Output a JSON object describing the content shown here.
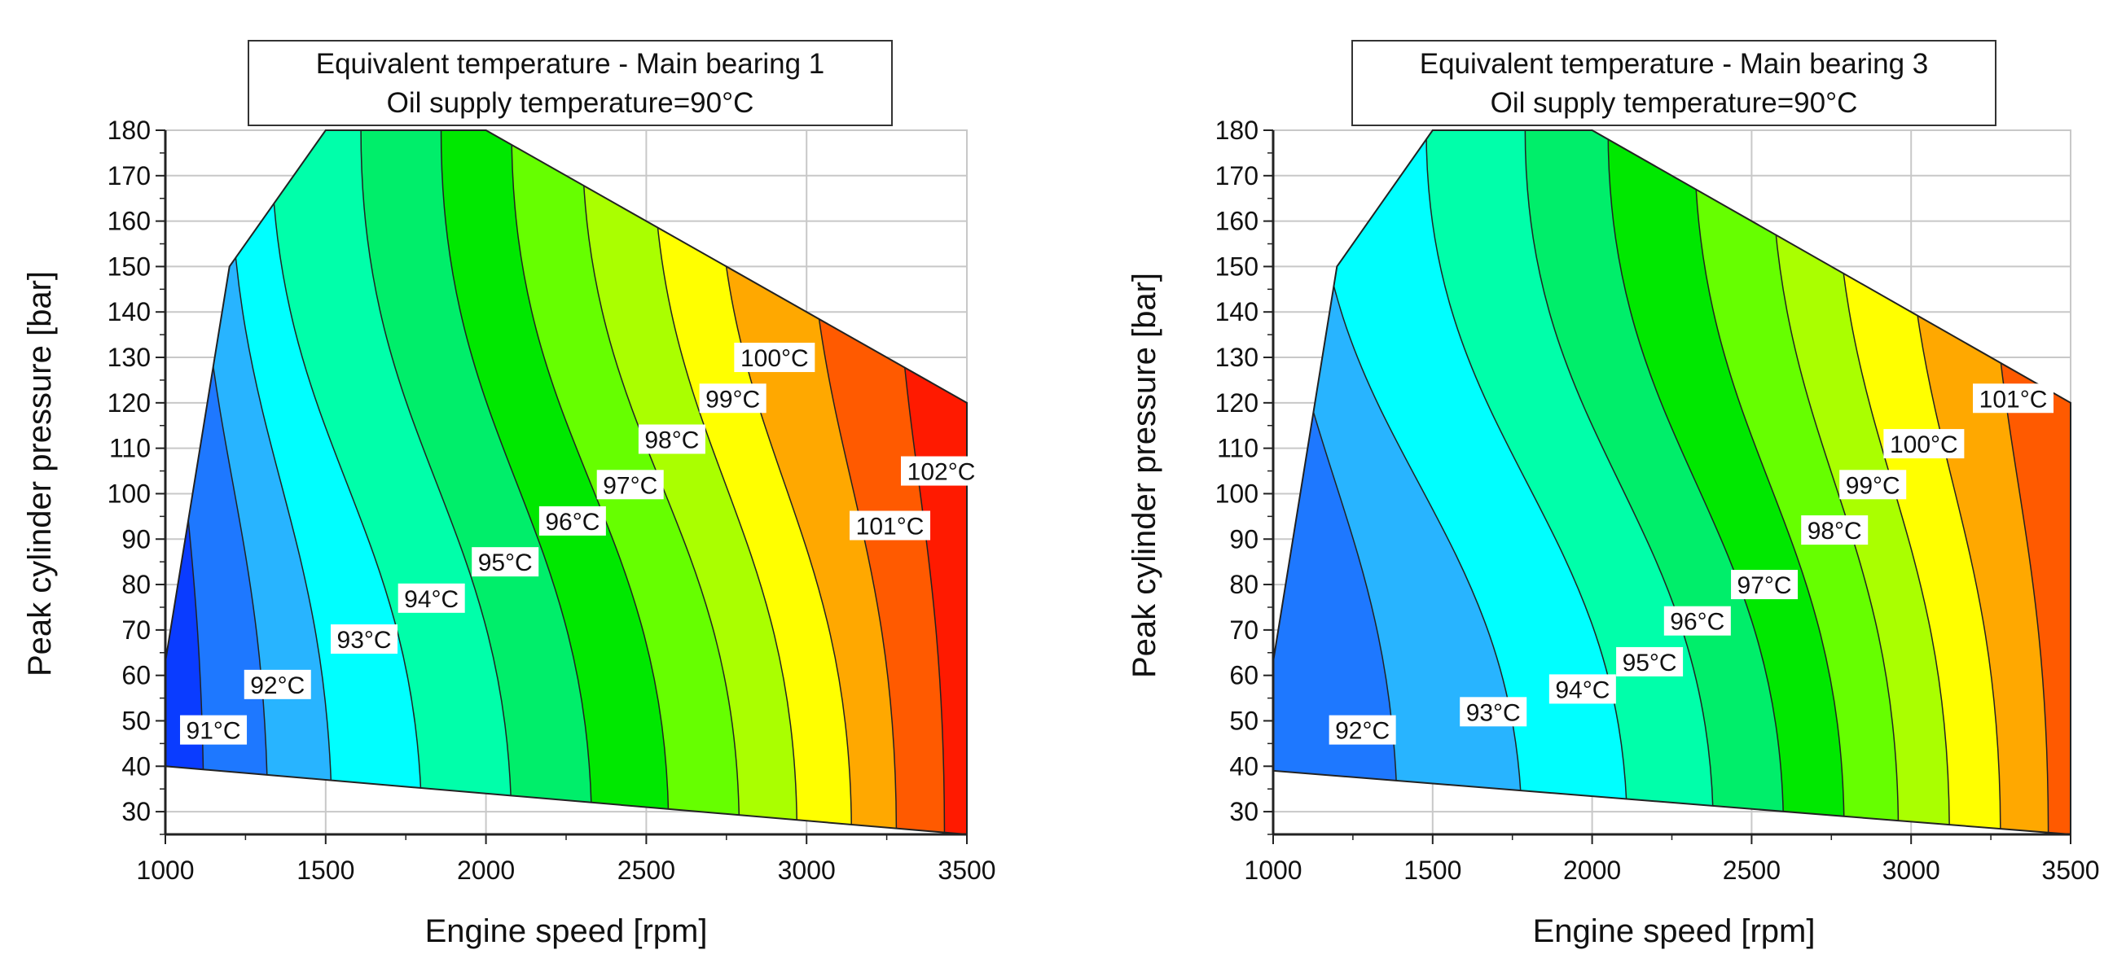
{
  "chart_data": [
    {
      "type": "contour",
      "title_line1": "Equivalent temperature - Main bearing 1",
      "title_line2": "Oil supply temperature=90°C",
      "xlabel": "Engine speed [rpm]",
      "ylabel": "Peak cylinder pressure [bar]",
      "xlim": [
        1000,
        3500
      ],
      "ylim": [
        25,
        180
      ],
      "xticks": [
        1000,
        1500,
        2000,
        2500,
        3000,
        3500
      ],
      "yticks": [
        30,
        40,
        50,
        60,
        70,
        80,
        90,
        100,
        110,
        120,
        130,
        140,
        150,
        160,
        170,
        180
      ],
      "domain": [
        [
          1000,
          40
        ],
        [
          1000,
          63
        ],
        [
          1200,
          150
        ],
        [
          1500,
          180
        ],
        [
          2000,
          180
        ],
        [
          3500,
          120
        ],
        [
          3500,
          25
        ]
      ],
      "iso_lines": [
        {
          "level": 91,
          "bottom": 1120,
          "top": 1000
        },
        {
          "level": 92,
          "bottom": 1320,
          "top": 1100
        },
        {
          "level": 93,
          "bottom": 1520,
          "top": 1200
        },
        {
          "level": 94,
          "bottom": 1800,
          "top": 1330
        },
        {
          "level": 95,
          "bottom": 2080,
          "top": 1610
        },
        {
          "level": 96,
          "bottom": 2330,
          "top": 1860
        },
        {
          "level": 97,
          "bottom": 2570,
          "top": 2080
        },
        {
          "level": 98,
          "bottom": 2790,
          "top": 2300
        },
        {
          "level": 99,
          "bottom": 2970,
          "top": 2520
        },
        {
          "level": 100,
          "bottom": 3140,
          "top": 2720
        },
        {
          "level": 101,
          "bottom": 3280,
          "top": 3000
        },
        {
          "level": 102,
          "bottom": 3430,
          "top": 3270
        }
      ],
      "labels": [
        {
          "text": "91°C",
          "x": 1150,
          "y": 48
        },
        {
          "text": "92°C",
          "x": 1350,
          "y": 58
        },
        {
          "text": "93°C",
          "x": 1620,
          "y": 68
        },
        {
          "text": "94°C",
          "x": 1830,
          "y": 77
        },
        {
          "text": "95°C",
          "x": 2060,
          "y": 85
        },
        {
          "text": "96°C",
          "x": 2270,
          "y": 94
        },
        {
          "text": "97°C",
          "x": 2450,
          "y": 102
        },
        {
          "text": "98°C",
          "x": 2580,
          "y": 112
        },
        {
          "text": "99°C",
          "x": 2770,
          "y": 121
        },
        {
          "text": "100°C",
          "x": 2900,
          "y": 130
        },
        {
          "text": "101°C",
          "x": 3260,
          "y": 93
        },
        {
          "text": "102°C",
          "x": 3420,
          "y": 105
        }
      ]
    },
    {
      "type": "contour",
      "title_line1": "Equivalent temperature - Main bearing 3",
      "title_line2": "Oil supply temperature=90°C",
      "xlabel": "Engine speed [rpm]",
      "ylabel": "Peak cylinder pressure [bar]",
      "xlim": [
        1000,
        3500
      ],
      "ylim": [
        25,
        180
      ],
      "xticks": [
        1000,
        1500,
        2000,
        2500,
        3000,
        3500
      ],
      "yticks": [
        30,
        40,
        50,
        60,
        70,
        80,
        90,
        100,
        110,
        120,
        130,
        140,
        150,
        160,
        170,
        180
      ],
      "domain": [
        [
          1000,
          39
        ],
        [
          1000,
          63
        ],
        [
          1200,
          150
        ],
        [
          1500,
          180
        ],
        [
          2000,
          180
        ],
        [
          3500,
          120
        ],
        [
          3500,
          25
        ]
      ],
      "iso_lines": [
        {
          "level": 92,
          "bottom": 1390,
          "top": 1000
        },
        {
          "level": 93,
          "bottom": 1780,
          "top": 1130
        },
        {
          "level": 94,
          "bottom": 2110,
          "top": 1480
        },
        {
          "level": 95,
          "bottom": 2380,
          "top": 1790
        },
        {
          "level": 96,
          "bottom": 2600,
          "top": 2050
        },
        {
          "level": 97,
          "bottom": 2790,
          "top": 2320
        },
        {
          "level": 98,
          "bottom": 2960,
          "top": 2560
        },
        {
          "level": 99,
          "bottom": 3120,
          "top": 2760
        },
        {
          "level": 100,
          "bottom": 3280,
          "top": 2980
        },
        {
          "level": 101,
          "bottom": 3430,
          "top": 3240
        }
      ],
      "labels": [
        {
          "text": "92°C",
          "x": 1280,
          "y": 48
        },
        {
          "text": "93°C",
          "x": 1690,
          "y": 52
        },
        {
          "text": "94°C",
          "x": 1970,
          "y": 57
        },
        {
          "text": "95°C",
          "x": 2180,
          "y": 63
        },
        {
          "text": "96°C",
          "x": 2330,
          "y": 72
        },
        {
          "text": "97°C",
          "x": 2540,
          "y": 80
        },
        {
          "text": "98°C",
          "x": 2760,
          "y": 92
        },
        {
          "text": "99°C",
          "x": 2880,
          "y": 102
        },
        {
          "text": "100°C",
          "x": 3040,
          "y": 111
        },
        {
          "text": "101°C",
          "x": 3320,
          "y": 121
        }
      ]
    }
  ],
  "colors": {
    "91": "#0a3cff",
    "92": "#1e78ff",
    "93": "#28b4ff",
    "94": "#00ffff",
    "95": "#00ffaa",
    "96": "#00ee6a",
    "97": "#00e800",
    "98": "#66ff00",
    "99": "#aaff00",
    "100": "#ffff00",
    "101": "#ffa800",
    "102": "#ff5a00",
    "103": "#ff1a00"
  }
}
